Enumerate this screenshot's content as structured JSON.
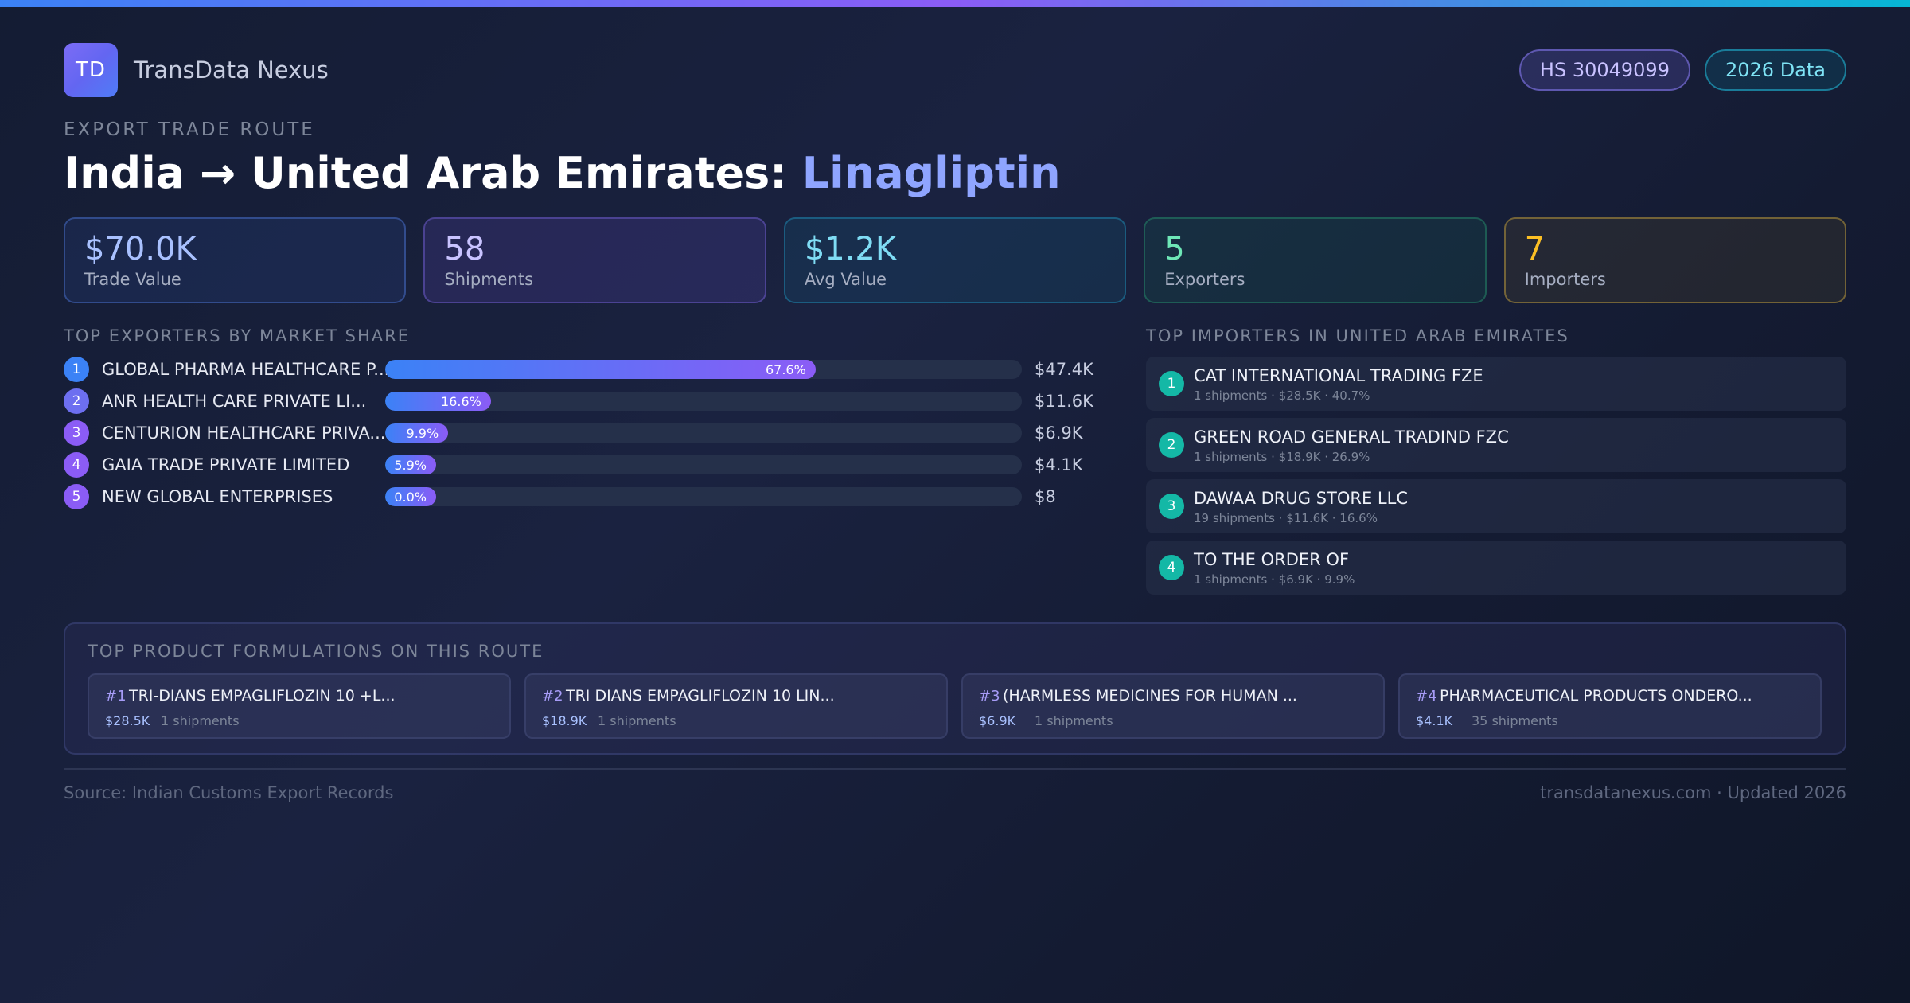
{
  "brand": {
    "logo_text": "TD",
    "name": "TransData Nexus"
  },
  "badges": {
    "hs_code": "HS 30049099",
    "year": "2026 Data"
  },
  "route": {
    "eyebrow": "EXPORT TRADE ROUTE",
    "title_prefix": "India → United Arab Emirates: ",
    "product": "Linagliptin"
  },
  "stats": [
    {
      "value": "$70.0K",
      "label": "Trade Value"
    },
    {
      "value": "58",
      "label": "Shipments"
    },
    {
      "value": "$1.2K",
      "label": "Avg Value"
    },
    {
      "value": "5",
      "label": "Exporters"
    },
    {
      "value": "7",
      "label": "Importers"
    }
  ],
  "exporters": {
    "heading": "TOP EXPORTERS BY MARKET SHARE",
    "rows": [
      {
        "rank": "1",
        "name": "GLOBAL PHARMA HEALTHCARE P...",
        "share_label": "67.6%",
        "share": 67.6,
        "value": "$47.4K",
        "rank_color": "#3b82f6"
      },
      {
        "rank": "2",
        "name": "ANR HEALTH CARE PRIVATE LI...",
        "share_label": "16.6%",
        "share": 16.6,
        "value": "$11.6K",
        "rank_color": "#6d6ff0"
      },
      {
        "rank": "3",
        "name": "CENTURION HEALTHCARE PRIVA...",
        "share_label": "9.9%",
        "share": 9.9,
        "value": "$6.9K",
        "rank_color": "#8b5cf6"
      },
      {
        "rank": "4",
        "name": "GAIA TRADE PRIVATE LIMITED",
        "share_label": "5.9%",
        "share": 5.9,
        "value": "$4.1K",
        "rank_color": "#8b5cf6"
      },
      {
        "rank": "5",
        "name": "NEW GLOBAL ENTERPRISES",
        "share_label": "0.0%",
        "share": 0.0,
        "value": "$8",
        "rank_color": "#8b5cf6"
      }
    ]
  },
  "importers": {
    "heading": "TOP IMPORTERS IN UNITED ARAB EMIRATES",
    "rows": [
      {
        "rank": "1",
        "name": "CAT INTERNATIONAL TRADING FZE",
        "meta": "1 shipments · $28.5K · 40.7%"
      },
      {
        "rank": "2",
        "name": "GREEN ROAD GENERAL TRADIND FZC",
        "meta": "1 shipments · $18.9K · 26.9%"
      },
      {
        "rank": "3",
        "name": "DAWAA DRUG STORE LLC",
        "meta": "19 shipments · $11.6K · 16.6%"
      },
      {
        "rank": "4",
        "name": "TO THE ORDER OF",
        "meta": "1 shipments · $6.9K · 9.9%"
      }
    ]
  },
  "formulations": {
    "heading": "TOP PRODUCT FORMULATIONS ON THIS ROUTE",
    "items": [
      {
        "num": "#1",
        "title": "TRI-DIANS EMPAGLIFLOZIN 10 +L...",
        "value": "$28.5K",
        "shipments": "1 shipments"
      },
      {
        "num": "#2",
        "title": "TRI DIANS EMPAGLIFLOZIN 10 LIN...",
        "value": "$18.9K",
        "shipments": "1 shipments"
      },
      {
        "num": "#3",
        "title": "(HARMLESS MEDICINES FOR HUMAN ...",
        "value": "$6.9K",
        "shipments": "1 shipments"
      },
      {
        "num": "#4",
        "title": "PHARMACEUTICAL PRODUCTS ONDERO...",
        "value": "$4.1K",
        "shipments": "35 shipments"
      }
    ]
  },
  "footer": {
    "source": "Source: Indian Customs Export Records",
    "site": "transdatanexus.com · Updated 2026"
  }
}
